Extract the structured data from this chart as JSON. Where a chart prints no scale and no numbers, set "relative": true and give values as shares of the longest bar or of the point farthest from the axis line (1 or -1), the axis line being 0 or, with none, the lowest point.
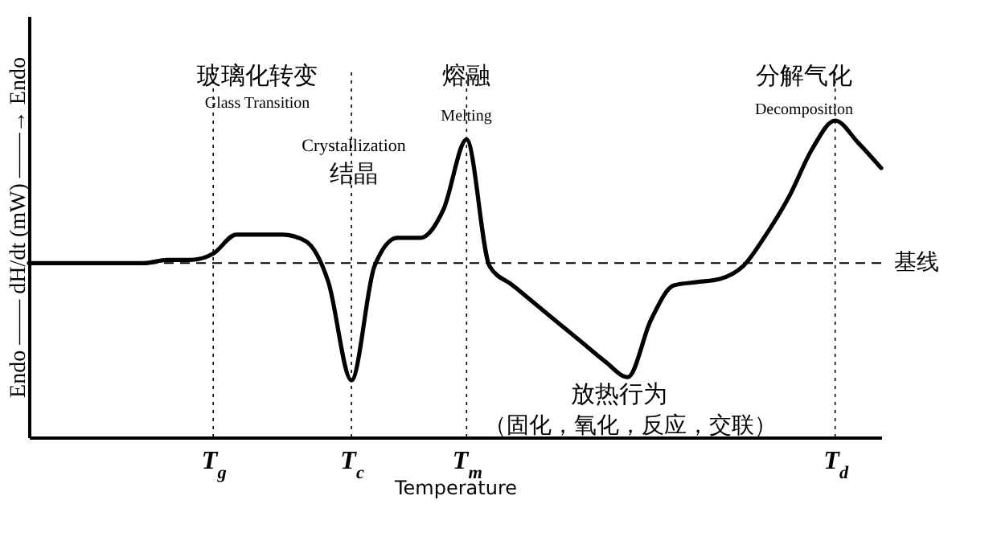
{
  "chart_data": {
    "type": "line",
    "relative": true,
    "xlabel": "Temperature",
    "ylabel": "Endo —— dH/dt (mW) ——→ Endo",
    "categories": [
      null,
      null,
      null,
      null,
      null,
      null,
      null,
      null,
      "T$_{g}$",
      null,
      null,
      null,
      null,
      null,
      "T$_{c}$",
      null,
      null,
      null,
      null,
      "T$_{m}$",
      null,
      null,
      null,
      null,
      null,
      null,
      null,
      null,
      null,
      null,
      null,
      null,
      null,
      null,
      null,
      "T$_{d}$",
      null,
      null
    ],
    "series": [
      {
        "color": "#000000",
        "values": [
          0.55,
          0.55,
          0.55,
          0.55,
          0.55,
          0.55,
          0.56,
          0.56,
          0.58,
          0.64,
          0.64,
          0.64,
          0.62,
          0.49,
          0.18,
          0.54,
          0.63,
          0.63,
          0.72,
          0.94,
          0.54,
          0.48,
          0.42,
          0.36,
          0.3,
          0.24,
          0.19,
          0.37,
          0.48,
          0.49,
          0.5,
          0.54,
          0.64,
          0.76,
          0.91,
          1,
          0.93,
          0.85
        ]
      }
    ],
    "ref_lines": [
      {
        "axis": "y",
        "value": 0.55,
        "label": "基线",
        "line_style": "dashed"
      },
      {
        "axis": "x",
        "value": "T$_{g}$",
        "line_style": "dotted"
      },
      {
        "axis": "x",
        "value": "T$_{c}$",
        "line_style": "dotted"
      },
      {
        "axis": "x",
        "value": "T$_{m}$",
        "line_style": "dotted"
      },
      {
        "axis": "x",
        "value": "T$_{d}$",
        "line_style": "dotted"
      }
    ],
    "annotations": [
      "玻璃化转变",
      "Glass Transition",
      "Crystallization",
      "结晶",
      "熔融",
      "Melting",
      "分解气化",
      "Decomposition",
      "放热行为",
      "（固化，氧化，反应，交联）"
    ],
    "marker": "none",
    "line_style": "solid",
    "grid": false
  }
}
